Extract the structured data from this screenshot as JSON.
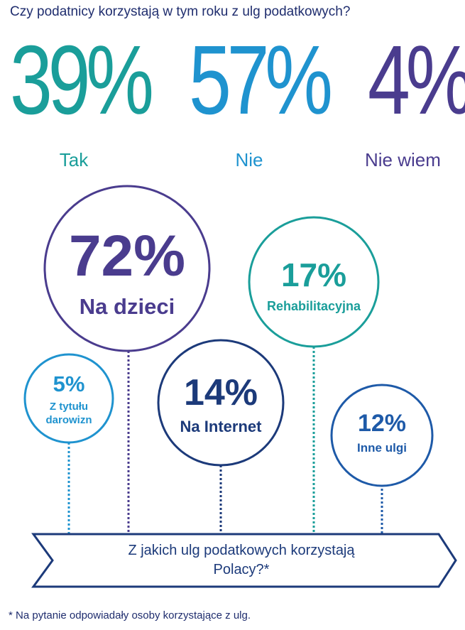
{
  "question": "Czy podatnicy korzystają w tym roku z ulg podatkowych?",
  "answers": [
    {
      "value": "39%",
      "label": "Tak",
      "color": "#1a9e9a"
    },
    {
      "value": "57%",
      "label": "Nie",
      "color": "#1f93cf"
    },
    {
      "value": "4%",
      "label": "Nie wiem",
      "color": "#4a3c8e"
    }
  ],
  "bubbles": [
    {
      "key": "dzieci",
      "value": "72%",
      "label": "Na dzieci",
      "color": "#4a3c8e"
    },
    {
      "key": "rehab",
      "value": "17%",
      "label": "Rehabilitacyjna",
      "color": "#1a9e9a"
    },
    {
      "key": "darowizn",
      "value": "5%",
      "label_line1": "Z tytułu",
      "label_line2": "darowizn",
      "color": "#1f93cf"
    },
    {
      "key": "internet",
      "value": "14%",
      "label": "Na Internet",
      "color": "#1c3a7a"
    },
    {
      "key": "inne",
      "value": "12%",
      "label": "Inne ulgi",
      "color": "#1e5aa8"
    }
  ],
  "banner": {
    "line1": "Z jakich ulg podatkowych korzystają",
    "line2": "Polacy?*",
    "color": "#1c3a7a"
  },
  "footnote": "* Na pytanie odpowiadały osoby korzystające z ulg.",
  "chart_data": {
    "type": "bubble",
    "title": "Czy podatnicy korzystają w tym roku z ulg podatkowych?",
    "answers": {
      "categories": [
        "Tak",
        "Nie",
        "Nie wiem"
      ],
      "values": [
        39,
        57,
        4
      ]
    },
    "ulgi": {
      "title": "Z jakich ulg podatkowych korzystają Polacy?*",
      "categories": [
        "Na dzieci",
        "Rehabilitacyjna",
        "Z tytułu darowizn",
        "Na Internet",
        "Inne ulgi"
      ],
      "values": [
        72,
        17,
        5,
        14,
        12
      ]
    }
  }
}
